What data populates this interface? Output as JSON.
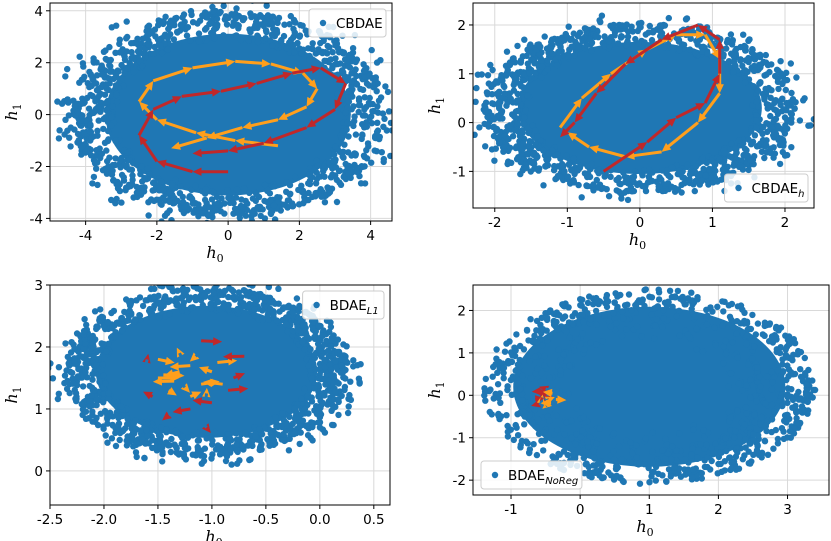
{
  "colors": {
    "scatter": "#1f77b4",
    "orange": "#ff9f1c",
    "red": "#c0282a",
    "grid": "#d9d9d9"
  },
  "chart_data": [
    {
      "id": "top-left",
      "type": "scatter",
      "xlabel": "h",
      "xlabel_sub": "0",
      "ylabel": "h",
      "ylabel_sub": "1",
      "xlim": [
        -5.0,
        4.6
      ],
      "ylim": [
        -4.1,
        4.3
      ],
      "xticks": [
        "-4",
        "-2",
        "0",
        "2",
        "4"
      ],
      "xtick_values": [
        -4,
        -2,
        0,
        2,
        4
      ],
      "yticks": [
        "-4",
        "-2",
        "0",
        "2",
        "4"
      ],
      "ytick_values": [
        -4,
        -2,
        0,
        2,
        4
      ],
      "legend": {
        "label": "CBDAE",
        "sub": "",
        "position": "top-right"
      },
      "cloud": {
        "cx": 0,
        "cy": 0,
        "rx": 4.2,
        "ry": 3.8
      },
      "series": [
        {
          "name": "orange trajectory",
          "color": "orange",
          "points": [
            [
              1.4,
              -1.2
            ],
            [
              0.2,
              -1.0
            ],
            [
              -0.9,
              -0.7
            ],
            [
              -2.0,
              -0.2
            ],
            [
              -2.5,
              0.5
            ],
            [
              -2.1,
              1.3
            ],
            [
              -1.0,
              1.8
            ],
            [
              0.2,
              2.05
            ],
            [
              1.2,
              1.95
            ],
            [
              2.1,
              1.6
            ],
            [
              2.5,
              1.0
            ],
            [
              2.2,
              0.3
            ],
            [
              1.4,
              -0.2
            ],
            [
              0.4,
              -0.5
            ],
            [
              -0.6,
              -0.9
            ],
            [
              -1.6,
              -1.3
            ]
          ]
        },
        {
          "name": "red trajectory",
          "color": "red",
          "points": [
            [
              0.0,
              -2.2
            ],
            [
              -1.0,
              -2.2
            ],
            [
              -2.0,
              -1.8
            ],
            [
              -2.5,
              -0.8
            ],
            [
              -2.1,
              0.2
            ],
            [
              -1.3,
              0.7
            ],
            [
              -0.2,
              0.9
            ],
            [
              0.8,
              1.2
            ],
            [
              1.8,
              1.6
            ],
            [
              2.6,
              1.8
            ],
            [
              3.3,
              1.2
            ],
            [
              3.0,
              0.2
            ],
            [
              2.2,
              -0.5
            ],
            [
              1.0,
              -1.1
            ],
            [
              0.0,
              -1.4
            ],
            [
              -1.0,
              -1.5
            ]
          ]
        }
      ]
    },
    {
      "id": "top-right",
      "type": "scatter",
      "xlabel": "h",
      "xlabel_sub": "0",
      "ylabel": "h",
      "ylabel_sub": "1",
      "xlim": [
        -2.3,
        2.4
      ],
      "ylim": [
        -1.75,
        2.45
      ],
      "xticks": [
        "-2",
        "-1",
        "0",
        "1",
        "2"
      ],
      "xtick_values": [
        -2,
        -1,
        0,
        1,
        2
      ],
      "yticks": [
        "-1",
        "0",
        "1",
        "2"
      ],
      "ytick_values": [
        -1,
        0,
        1,
        2
      ],
      "legend": {
        "label": "CBDAE",
        "sub": "h",
        "position": "bottom-right"
      },
      "cloud": {
        "cx": 0,
        "cy": 0.3,
        "rx": 2.05,
        "ry": 1.65
      },
      "series": [
        {
          "name": "orange trajectory",
          "color": "orange",
          "points": [
            [
              -1.1,
              -0.1
            ],
            [
              -0.8,
              0.5
            ],
            [
              -0.4,
              1.0
            ],
            [
              0.1,
              1.5
            ],
            [
              0.5,
              1.8
            ],
            [
              0.9,
              1.8
            ],
            [
              1.1,
              1.3
            ],
            [
              1.1,
              0.6
            ],
            [
              0.8,
              0.0
            ],
            [
              0.3,
              -0.6
            ],
            [
              -0.2,
              -0.7
            ],
            [
              -0.7,
              -0.5
            ],
            [
              -1.0,
              -0.2
            ]
          ]
        },
        {
          "name": "red trajectory",
          "color": "red",
          "points": [
            [
              -0.5,
              -1.0
            ],
            [
              0.1,
              -0.4
            ],
            [
              0.5,
              0.1
            ],
            [
              0.9,
              0.4
            ],
            [
              1.1,
              1.0
            ],
            [
              1.1,
              1.7
            ],
            [
              0.8,
              2.0
            ],
            [
              0.3,
              1.7
            ],
            [
              -0.2,
              1.2
            ],
            [
              -0.6,
              0.6
            ],
            [
              -0.9,
              0.0
            ],
            [
              -1.1,
              -0.3
            ]
          ]
        }
      ]
    },
    {
      "id": "bottom-left",
      "type": "scatter",
      "xlabel": "h",
      "xlabel_sub": "0",
      "ylabel": "h",
      "ylabel_sub": "1",
      "xlim": [
        -2.5,
        0.65
      ],
      "ylim": [
        -0.55,
        3.0
      ],
      "xticks": [
        "-2.5",
        "-2.0",
        "-1.5",
        "-1.0",
        "-0.5",
        "0.0",
        "0.5"
      ],
      "xtick_values": [
        -2.5,
        -2.0,
        -1.5,
        -1.0,
        -0.5,
        0.0,
        0.5
      ],
      "yticks": [
        "0",
        "1",
        "2",
        "3"
      ],
      "ytick_values": [
        0,
        1,
        2,
        3
      ],
      "legend": {
        "label": "BDAE",
        "sub": "L1",
        "position": "top-right"
      },
      "cloud": {
        "cx": -1.05,
        "cy": 1.6,
        "rx": 1.25,
        "ry": 1.3
      },
      "series": [
        {
          "name": "orange cluster",
          "color": "orange",
          "points": [
            [
              -1.5,
              1.5
            ],
            [
              -1.3,
              1.9
            ],
            [
              -1.2,
              1.7
            ],
            [
              -1.4,
              1.3
            ],
            [
              -1.1,
              1.4
            ],
            [
              -1.0,
              1.6
            ],
            [
              -1.3,
              1.6
            ],
            [
              -1.5,
              1.8
            ],
            [
              -1.2,
              1.2
            ],
            [
              -0.9,
              1.4
            ],
            [
              -1.15,
              1.85
            ],
            [
              -1.45,
              1.55
            ],
            [
              -1.05,
              1.25
            ],
            [
              -1.35,
              1.45
            ],
            [
              -1.25,
              1.35
            ],
            [
              -0.95,
              1.75
            ]
          ]
        },
        {
          "name": "red cluster",
          "color": "red",
          "points": [
            [
              -0.8,
              1.5
            ],
            [
              -1.0,
              1.1
            ],
            [
              -1.4,
              0.9
            ],
            [
              -1.1,
              2.1
            ],
            [
              -1.6,
              1.8
            ],
            [
              -0.7,
              1.85
            ],
            [
              -1.05,
              0.7
            ],
            [
              -0.85,
              1.3
            ],
            [
              -1.55,
              1.2
            ],
            [
              -1.2,
              1.0
            ]
          ]
        }
      ]
    },
    {
      "id": "bottom-right",
      "type": "scatter",
      "xlabel": "h",
      "xlabel_sub": "0",
      "ylabel": "h",
      "ylabel_sub": "1",
      "xlim": [
        -1.55,
        3.6
      ],
      "ylim": [
        -2.35,
        2.6
      ],
      "xticks": [
        "-1",
        "0",
        "1",
        "2",
        "3"
      ],
      "xtick_values": [
        -1,
        0,
        1,
        2,
        3
      ],
      "yticks": [
        "-2",
        "-1",
        "0",
        "1",
        "2"
      ],
      "ytick_values": [
        -2,
        -1,
        0,
        1,
        2
      ],
      "legend": {
        "label": "BDAE",
        "sub": "NoReg",
        "position": "bottom-left"
      },
      "cloud": {
        "cx": 1.0,
        "cy": 0.2,
        "rx": 2.4,
        "ry": 2.3
      },
      "series": [
        {
          "name": "red cluster",
          "color": "red",
          "points": [
            [
              -0.6,
              0.05
            ],
            [
              -0.5,
              -0.05
            ],
            [
              -0.55,
              0.1
            ],
            [
              -0.45,
              0.0
            ],
            [
              -0.65,
              -0.1
            ],
            [
              -0.5,
              0.15
            ],
            [
              -0.6,
              -0.2
            ]
          ]
        },
        {
          "name": "orange cluster",
          "color": "orange",
          "points": [
            [
              -0.45,
              -0.1
            ],
            [
              -0.4,
              0.05
            ],
            [
              -0.5,
              -0.25
            ],
            [
              -0.35,
              -0.1
            ],
            [
              -0.55,
              -0.05
            ],
            [
              -0.42,
              -0.18
            ]
          ]
        }
      ]
    }
  ]
}
